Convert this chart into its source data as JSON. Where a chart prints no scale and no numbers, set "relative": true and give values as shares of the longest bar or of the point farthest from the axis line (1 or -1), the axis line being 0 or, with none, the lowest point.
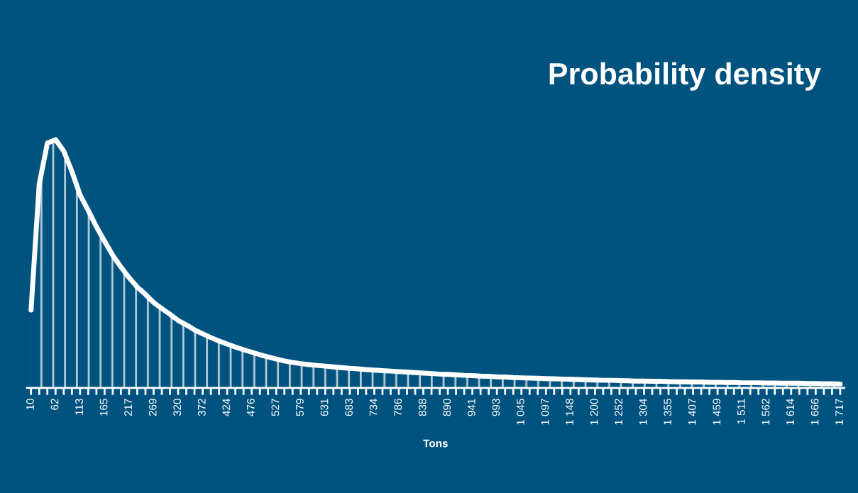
{
  "chart_data": {
    "type": "area",
    "title": "Probability density",
    "xlabel": "Tons",
    "relative": true,
    "color": "#ffffff",
    "marker": "none",
    "line_style": "solid",
    "categories": [
      "10",
      null,
      null,
      "62",
      null,
      null,
      "113",
      null,
      null,
      "165",
      null,
      null,
      "217",
      null,
      null,
      "269",
      null,
      null,
      "320",
      null,
      null,
      "372",
      null,
      null,
      "424",
      null,
      null,
      "476",
      null,
      null,
      "527",
      null,
      null,
      "579",
      null,
      null,
      "631",
      null,
      null,
      "683",
      null,
      null,
      "734",
      null,
      null,
      "786",
      null,
      null,
      "838",
      null,
      null,
      "890",
      null,
      null,
      "941",
      null,
      null,
      "993",
      null,
      null,
      "1 045",
      null,
      null,
      "1 097",
      null,
      null,
      "1 148",
      null,
      null,
      "1 200",
      null,
      null,
      "1 252",
      null,
      null,
      "1 304",
      null,
      null,
      "1 355",
      null,
      null,
      "1 407",
      null,
      null,
      "1 459",
      null,
      null,
      "1 511",
      null,
      null,
      "1 562",
      null,
      null,
      "1 614",
      null,
      null,
      "1 666",
      null,
      null,
      "1 717"
    ],
    "values": [
      0.314,
      0.82,
      0.986,
      1.0,
      0.954,
      0.872,
      0.777,
      0.715,
      0.649,
      0.591,
      0.534,
      0.487,
      0.444,
      0.406,
      0.377,
      0.344,
      0.32,
      0.297,
      0.272,
      0.254,
      0.234,
      0.218,
      0.203,
      0.189,
      0.177,
      0.165,
      0.154,
      0.144,
      0.134,
      0.125,
      0.117,
      0.109,
      0.103,
      0.098,
      0.094,
      0.091,
      0.088,
      0.085,
      0.082,
      0.079,
      0.077,
      0.074,
      0.072,
      0.07,
      0.068,
      0.066,
      0.064,
      0.062,
      0.06,
      0.058,
      0.056,
      0.055,
      0.053,
      0.051,
      0.05,
      0.048,
      0.047,
      0.045,
      0.044,
      0.042,
      0.041,
      0.04,
      0.039,
      0.038,
      0.037,
      0.036,
      0.035,
      0.034,
      0.033,
      0.032,
      0.031,
      0.031,
      0.03,
      0.029,
      0.028,
      0.028,
      0.027,
      0.027,
      0.026,
      0.025,
      0.025,
      0.024,
      0.024,
      0.023,
      0.023,
      0.022,
      0.022,
      0.021,
      0.021,
      0.021,
      0.02,
      0.02,
      0.019,
      0.019,
      0.019,
      0.018,
      0.018,
      0.017,
      0.017,
      0.016
    ]
  }
}
